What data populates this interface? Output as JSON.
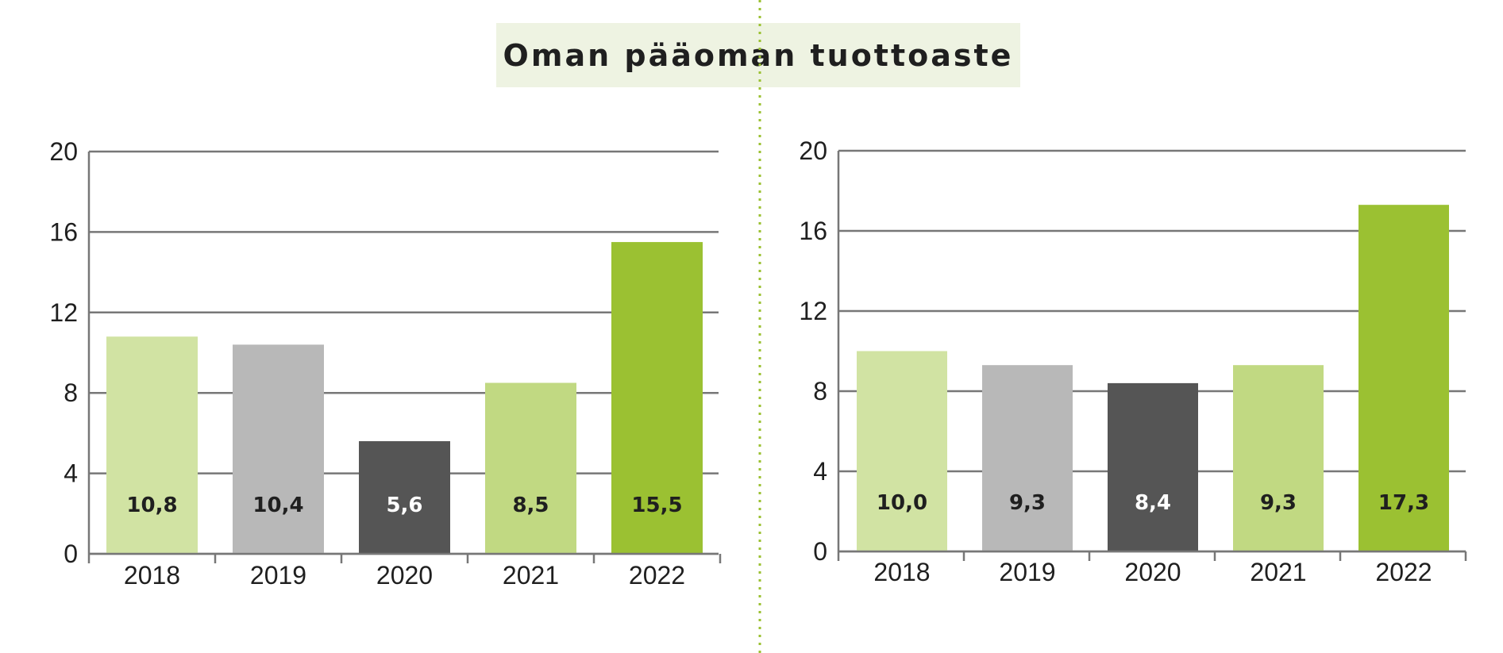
{
  "title": "Oman pääoman tuottoaste",
  "colors": {
    "c2018": "#d1e3a3",
    "c2019": "#b8b8b8",
    "c2020": "#555555",
    "c2021": "#c1d982",
    "c2022": "#9bc132",
    "divider": "#9bc132",
    "grid": "#777777"
  },
  "chart_data": [
    {
      "type": "bar",
      "categories": [
        "2018",
        "2019",
        "2020",
        "2021",
        "2022"
      ],
      "values": [
        10.8,
        10.4,
        5.6,
        8.5,
        15.5
      ],
      "value_labels": [
        "10,8",
        "10,4",
        "5,6",
        "8,5",
        "15,5"
      ],
      "ylim": [
        0,
        20
      ],
      "yticks": [
        "0",
        "4",
        "8",
        "12",
        "16",
        "20"
      ],
      "grid": true
    },
    {
      "type": "bar",
      "categories": [
        "2018",
        "2019",
        "2020",
        "2021",
        "2022"
      ],
      "values": [
        10.0,
        9.3,
        8.4,
        9.3,
        17.3
      ],
      "value_labels": [
        "10,0",
        "9,3",
        "8,4",
        "9,3",
        "17,3"
      ],
      "ylim": [
        0,
        20
      ],
      "yticks": [
        "0",
        "4",
        "8",
        "12",
        "16",
        "20"
      ],
      "grid": true
    }
  ]
}
